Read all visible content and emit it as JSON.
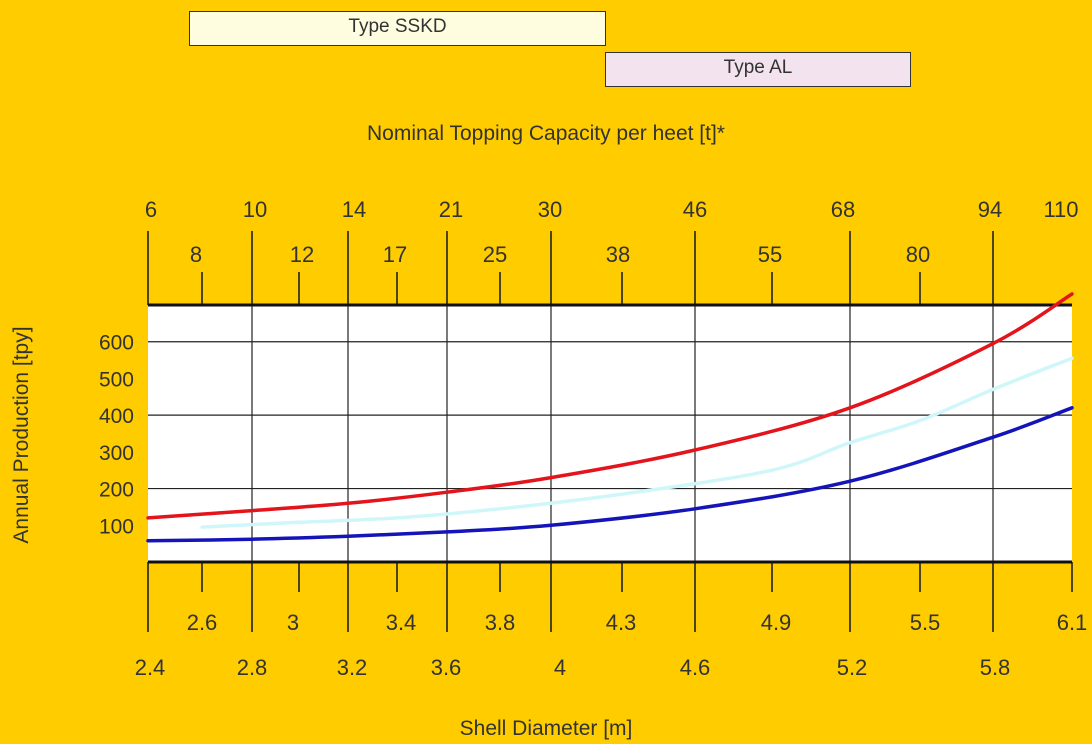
{
  "colors": {
    "background": "#FFCC00",
    "plot_area": "#FFFFFF",
    "sskd_box": "#FFFDE0",
    "al_box": "#F3E3EE",
    "red_series": "#E3141C",
    "light_series": "#CFF7FA",
    "blue_series": "#1414B8",
    "text": "#333333"
  },
  "type_labels": {
    "sskd": "Type SSKD",
    "al": "Type AL"
  },
  "chart_data": {
    "type": "line",
    "title": "",
    "top_axis_label": "Nominal Topping Capacity per heet [t]*",
    "xlabel": "Shell Diameter [m]",
    "ylabel": "Annual Production [tpy]",
    "ylim": [
      0,
      700
    ],
    "y_ticks": [
      "100",
      "200",
      "300",
      "400",
      "500",
      "600"
    ],
    "y_gridlines": [
      200,
      400,
      600
    ],
    "x_major_ticks": [
      "2.4",
      "2.8",
      "3.2",
      "3.6",
      "4",
      "4.6",
      "5.2",
      "5.8"
    ],
    "x_minor_ticks": [
      "2.6",
      "3",
      "3.4",
      "3.8",
      "4.3",
      "4.9",
      "5.5",
      "6.1"
    ],
    "top_major_ticks": [
      "6",
      "10",
      "14",
      "21",
      "30",
      "46",
      "68",
      "94",
      "110"
    ],
    "top_minor_ticks": [
      "8",
      "12",
      "17",
      "25",
      "38",
      "55",
      "80"
    ],
    "x_scale": "categorical (2.4 to 6.1 m)",
    "grid": "vertical lines at major diameter ticks, horizontal at 200/400/600",
    "series": [
      {
        "color": "red",
        "x": [
          2.4,
          2.8,
          3.2,
          3.6,
          4.0,
          4.6,
          5.2,
          5.8,
          6.1
        ],
        "values": [
          120,
          140,
          160,
          190,
          230,
          305,
          420,
          595,
          730
        ]
      },
      {
        "color": "light cyan",
        "x": [
          2.6,
          3.0,
          3.4,
          3.8,
          4.3,
          4.9,
          5.2,
          5.5,
          5.8,
          6.1
        ],
        "values": [
          95,
          108,
          120,
          145,
          185,
          250,
          325,
          385,
          470,
          555
        ]
      },
      {
        "color": "blue",
        "x": [
          2.4,
          2.8,
          3.2,
          3.6,
          4.0,
          4.6,
          5.2,
          5.8,
          6.1
        ],
        "values": [
          58,
          62,
          70,
          82,
          100,
          145,
          220,
          340,
          420
        ]
      }
    ]
  }
}
